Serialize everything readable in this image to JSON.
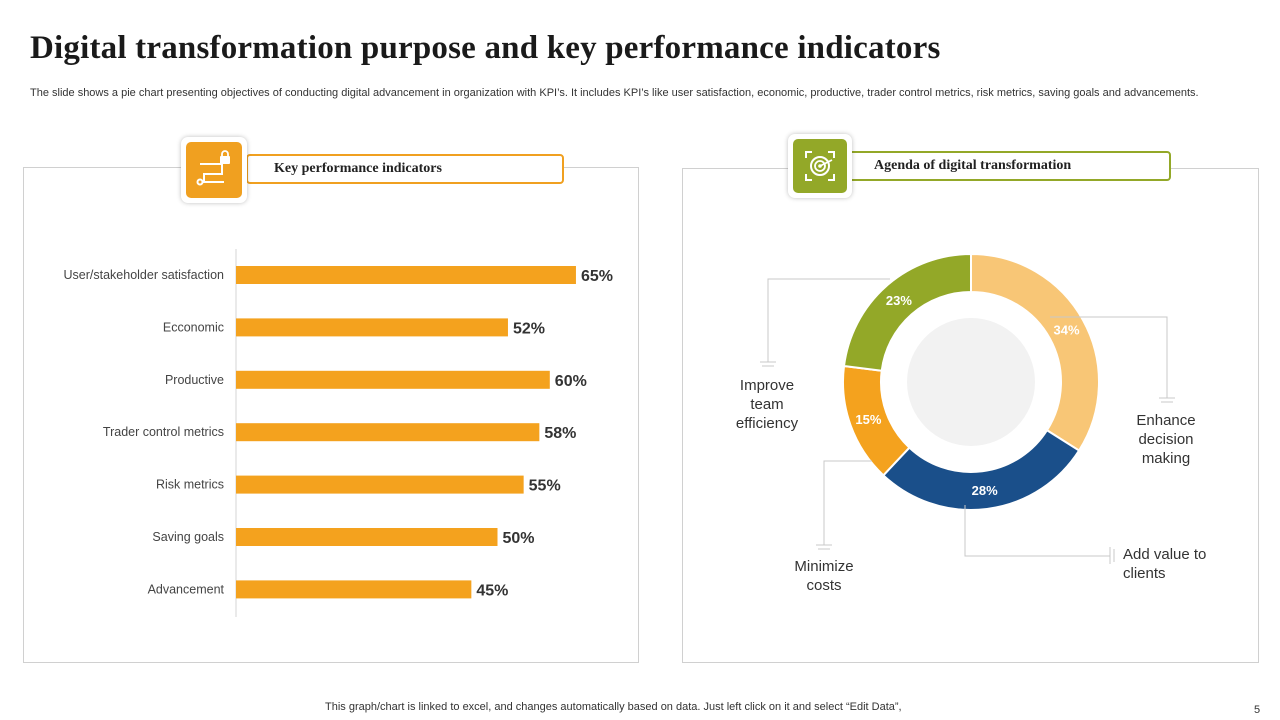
{
  "slide": {
    "title": "Digital transformation purpose and key performance indicators",
    "subtitle": "The slide shows a pie chart presenting objectives of conducting digital advancement in organization with KPI’s. It includes KPI’s like user satisfaction, economic, productive, trader control metrics, risk metrics, saving goals and advancements.",
    "footer": "This graph/chart is linked to excel,  and changes automatically based on data. Just left click on it and select “Edit Data”,",
    "page_number": "5"
  },
  "kpi_panel": {
    "header": "Key performance indicators",
    "icon": "padlock-network-icon"
  },
  "agenda_panel": {
    "header": "Agenda of  digital transformation",
    "icon": "target-icon"
  },
  "colors": {
    "orange": "#f4a21e",
    "green": "#93a828",
    "blue": "#1a4f8a",
    "light_orange": "#f8c676"
  },
  "chart_data": [
    {
      "type": "bar",
      "orientation": "horizontal",
      "title": "Key performance indicators",
      "categories": [
        "User/stakeholder satisfaction",
        "Ecconomic",
        "Productive",
        "Trader control metrics",
        "Risk metrics",
        "Saving goals",
        "Advancement"
      ],
      "values": [
        65,
        52,
        60,
        58,
        55,
        50,
        45
      ],
      "value_labels": [
        "65%",
        "52%",
        "60%",
        "58%",
        "55%",
        "50%",
        "45%"
      ],
      "xlim": [
        0,
        100
      ],
      "grid": false
    },
    {
      "type": "pie",
      "donut": true,
      "title": "Agenda of  digital transformation",
      "slices": [
        {
          "label": "Enhance decision making",
          "value": 34,
          "value_label": "34%",
          "color": "#f8c676"
        },
        {
          "label": "Add value to clients",
          "value": 28,
          "value_label": "28%",
          "color": "#1a4f8a"
        },
        {
          "label": "Minimize costs",
          "value": 15,
          "value_label": "15%",
          "color": "#f4a21e"
        },
        {
          "label": "Improve team efficiency",
          "value": 23,
          "value_label": "23%",
          "color": "#93a828"
        }
      ],
      "callouts": {
        "enhance": [
          "Enhance",
          "decision",
          "making"
        ],
        "add_value": [
          "Add value to",
          "clients"
        ],
        "minimize": [
          "Minimize",
          "costs"
        ],
        "improve": [
          "Improve",
          "team",
          "efficiency"
        ]
      }
    }
  ]
}
